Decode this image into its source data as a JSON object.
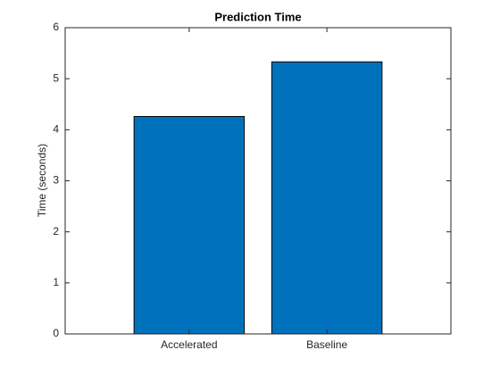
{
  "chart_data": {
    "type": "bar",
    "title": "Prediction Time",
    "ylabel": "Time (seconds)",
    "categories": [
      "Accelerated",
      "Baseline"
    ],
    "values": [
      4.26,
      5.33
    ],
    "color": "#0072BD",
    "ylim": [
      0,
      6
    ],
    "yticks": [
      0,
      1,
      2,
      3,
      4,
      5,
      6
    ],
    "grid": false
  }
}
